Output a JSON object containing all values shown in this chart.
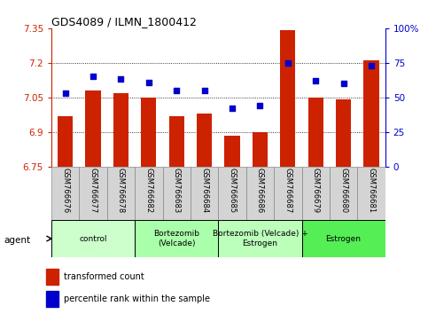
{
  "title": "GDS4089 / ILMN_1800412",
  "samples": [
    "GSM766676",
    "GSM766677",
    "GSM766678",
    "GSM766682",
    "GSM766683",
    "GSM766684",
    "GSM766685",
    "GSM766686",
    "GSM766687",
    "GSM766679",
    "GSM766680",
    "GSM766681"
  ],
  "bar_values": [
    6.97,
    7.08,
    7.07,
    7.05,
    6.97,
    6.98,
    6.885,
    6.9,
    7.34,
    7.05,
    7.04,
    7.21
  ],
  "percentile_values": [
    53,
    65,
    63,
    61,
    55,
    55,
    42,
    44,
    75,
    62,
    60,
    73
  ],
  "ylim_left": [
    6.75,
    7.35
  ],
  "ylim_right": [
    0,
    100
  ],
  "yticks_left": [
    6.75,
    6.9,
    7.05,
    7.2,
    7.35
  ],
  "yticks_right": [
    0,
    25,
    50,
    75,
    100
  ],
  "bar_color": "#cc2200",
  "dot_color": "#0000cc",
  "grid_color": "#000000",
  "agent_groups": [
    {
      "label": "control",
      "start": 0,
      "end": 3,
      "color": "#ccffcc"
    },
    {
      "label": "Bortezomib\n(Velcade)",
      "start": 3,
      "end": 6,
      "color": "#aaffaa"
    },
    {
      "label": "Bortezomib (Velcade) +\nEstrogen",
      "start": 6,
      "end": 9,
      "color": "#bbffbb"
    },
    {
      "label": "Estrogen",
      "start": 9,
      "end": 12,
      "color": "#55ee55"
    }
  ],
  "legend_items": [
    {
      "label": "transformed count",
      "color": "#cc2200"
    },
    {
      "label": "percentile rank within the sample",
      "color": "#0000cc"
    }
  ],
  "agent_label": "agent",
  "background_color": "#ffffff",
  "plot_bg_color": "#ffffff"
}
